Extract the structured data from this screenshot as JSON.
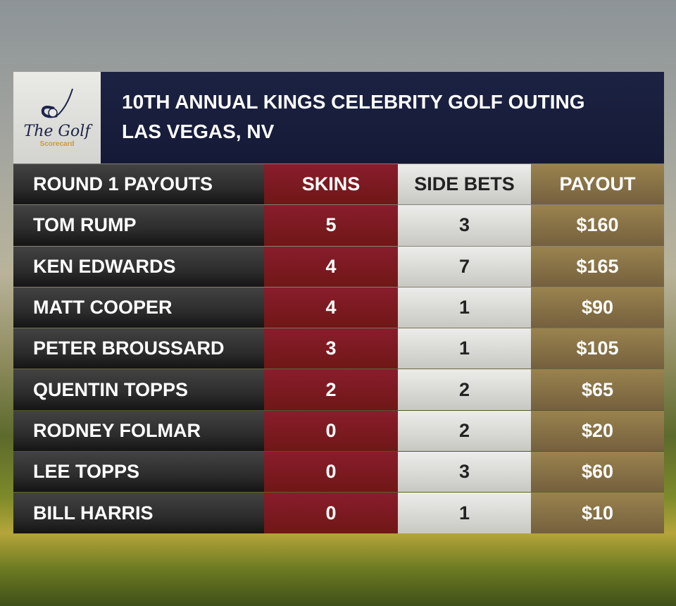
{
  "logo": {
    "title": "The Golf",
    "subtitle": "Scorecard"
  },
  "header": {
    "line1": "10TH ANNUAL KINGS CELEBRITY GOLF OUTING",
    "line2": "LAS VEGAS, NV"
  },
  "columns": [
    "ROUND 1 PAYOUTS",
    "SKINS",
    "SIDE BETS",
    "PAYOUT"
  ],
  "rows": [
    {
      "name": "TOM RUMP",
      "skins": "5",
      "side_bets": "3",
      "payout": "$160"
    },
    {
      "name": "KEN EDWARDS",
      "skins": "4",
      "side_bets": "7",
      "payout": "$165"
    },
    {
      "name": "MATT COOPER",
      "skins": "4",
      "side_bets": "1",
      "payout": "$90"
    },
    {
      "name": "PETER BROUSSARD",
      "skins": "3",
      "side_bets": "1",
      "payout": "$105"
    },
    {
      "name": "QUENTIN TOPPS",
      "skins": "2",
      "side_bets": "2",
      "payout": "$65"
    },
    {
      "name": "RODNEY FOLMAR",
      "skins": "0",
      "side_bets": "2",
      "payout": "$20"
    },
    {
      "name": "LEE TOPPS",
      "skins": "0",
      "side_bets": "3",
      "payout": "$60"
    },
    {
      "name": "BILL HARRIS",
      "skins": "0",
      "side_bets": "1",
      "payout": "$10"
    }
  ]
}
